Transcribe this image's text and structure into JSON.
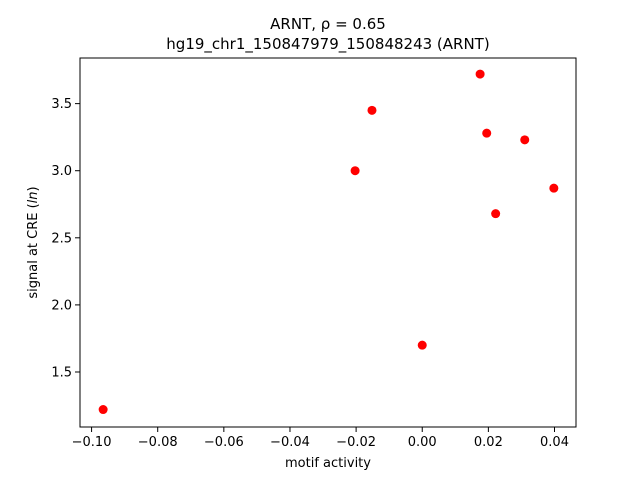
{
  "chart_data": {
    "type": "scatter",
    "title_line1": "ARNT, ρ = 0.65",
    "title_line2": "hg19_chr1_150847979_150848243 (ARNT)",
    "xlabel": "motif activity",
    "ylabel": "signal at CRE (ln)",
    "xlim": [
      -0.1035,
      0.0465
    ],
    "ylim": [
      1.09,
      3.84
    ],
    "xticks": [
      -0.1,
      -0.08,
      -0.06,
      -0.04,
      -0.02,
      0.0,
      0.02,
      0.04
    ],
    "xtick_labels": [
      "−0.10",
      "−0.08",
      "−0.06",
      "−0.04",
      "−0.02",
      "0.00",
      "0.02",
      "0.04"
    ],
    "yticks": [
      1.5,
      2.0,
      2.5,
      3.0,
      3.5
    ],
    "ytick_labels": [
      "1.5",
      "2.0",
      "2.5",
      "3.0",
      "3.5"
    ],
    "grid": false,
    "marker_color": "#ff0000",
    "points": [
      {
        "x": -0.0965,
        "y": 1.22
      },
      {
        "x": -0.0203,
        "y": 3.0
      },
      {
        "x": -0.0152,
        "y": 3.45
      },
      {
        "x": 0.0,
        "y": 1.7
      },
      {
        "x": 0.0175,
        "y": 3.72
      },
      {
        "x": 0.0195,
        "y": 3.28
      },
      {
        "x": 0.0222,
        "y": 2.68
      },
      {
        "x": 0.031,
        "y": 3.23
      },
      {
        "x": 0.0398,
        "y": 2.87
      }
    ]
  }
}
